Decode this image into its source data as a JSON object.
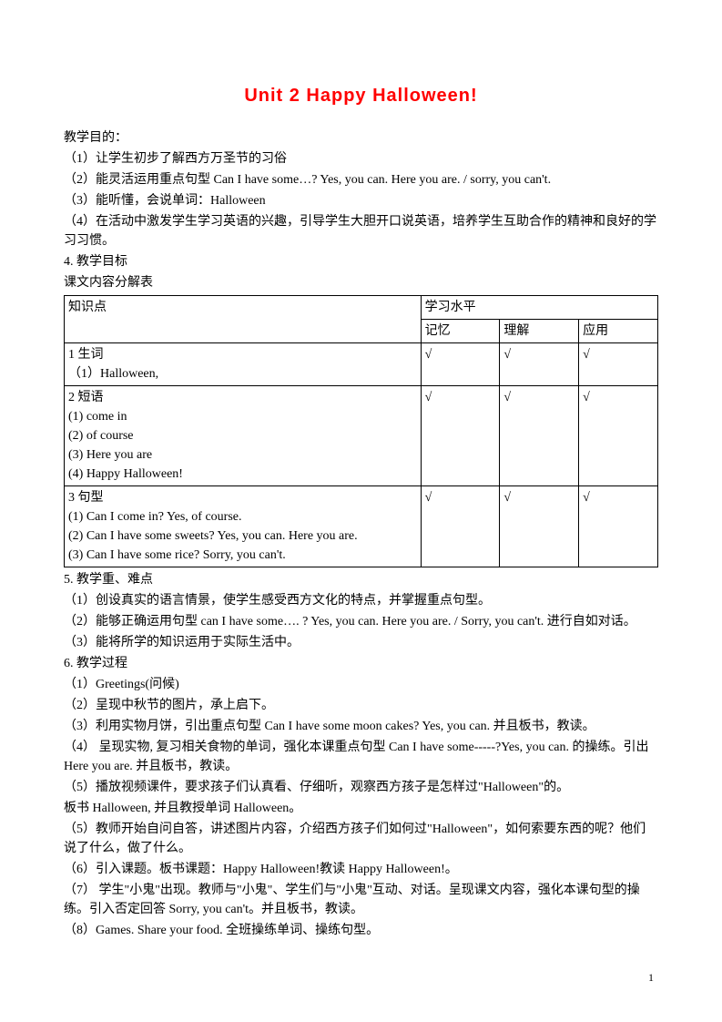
{
  "title": "Unit 2  Happy  Halloween!",
  "headings": {
    "teaching_purpose": "教学目的：",
    "purpose1": "（1）让学生初步了解西方万圣节的习俗",
    "purpose2": "（2）能灵活运用重点句型 Can I have some…? Yes, you can. Here you are. / sorry, you can't.",
    "purpose3": "（3）能听懂，会说单词：Halloween",
    "purpose4": "（4）在活动中激发学生学习英语的兴趣，引导学生大胆开口说英语，培养学生互助合作的精神和良好的学习习惯。",
    "objective_num": "4. 教学目标",
    "table_caption": "课文内容分解表",
    "keypoints_heading": "5.  教学重、难点",
    "kp1": "（1）创设真实的语言情景，使学生感受西方文化的特点，并掌握重点句型。",
    "kp2": "（2）能够正确运用句型 can I have some…. ? Yes, you can. Here you are. / Sorry, you can't. 进行自如对话。",
    "kp3": "（3）能将所学的知识运用于实际生活中。",
    "process_heading": "6.  教学过程",
    "proc1": "（1）Greetings(问候)",
    "proc2": "（2）呈现中秋节的图片，承上启下。",
    "proc3": "（3）利用实物月饼，引出重点句型 Can I have some moon cakes? Yes, you can. 并且板书，教读。",
    "proc4": "（4） 呈现实物, 复习相关食物的单词，强化本课重点句型 Can I have some-----?Yes, you can. 的操练。引出 Here you are.  并且板书，教读。",
    "proc5a": "（5）播放视频课件，要求孩子们认真看、仔细听，观察西方孩子是怎样过\"Halloween\"的。",
    "proc5b": "板书 Halloween, 并且教授单词 Halloween。",
    "proc5c": "（5）教师开始自问自答，讲述图片内容，介绍西方孩子们如何过\"Halloween\"，如何索要东西的呢？他们说了什么，做了什么。",
    "proc6": "（6）引入课题。板书课题：Happy Halloween!教读 Happy Halloween!。",
    "proc7": "（7） 学生\"小鬼\"出现。教师与\"小鬼\"、学生们与\"小鬼\"互动、对话。呈现课文内容，强化本课句型的操练。引入否定回答 Sorry, you can't。并且板书，教读。",
    "proc8": "（8）Games. Share your food. 全班操练单词、操练句型。"
  },
  "table": {
    "header": {
      "knowledge": "知识点",
      "level": "学习水平",
      "memory": "记忆",
      "understand": "理解",
      "apply": "应用"
    },
    "rows": [
      {
        "label": "1 生词",
        "lines": [
          "（1）Halloween,"
        ],
        "cells": [
          "√",
          "√",
          "√"
        ]
      },
      {
        "label": "2 短语",
        "lines": [
          "(1) come in",
          "(2) of course",
          "(3) Here you are",
          "(4) Happy Halloween!"
        ],
        "cells": [
          "√",
          "√",
          "√"
        ]
      },
      {
        "label": "3 句型",
        "lines": [
          "(1) Can I come in? Yes, of course.",
          "(2) Can I have some sweets? Yes, you can. Here you are.",
          "(3) Can I have some rice? Sorry, you can't."
        ],
        "cells": [
          "√",
          "√",
          "√"
        ]
      }
    ]
  },
  "page_number": "1",
  "styling": {
    "title_color": "#ff0000",
    "title_fontsize": 20,
    "body_fontsize": 14,
    "body_color": "#000000",
    "border_color": "#000000",
    "background": "#ffffff",
    "check_mark": "√"
  }
}
